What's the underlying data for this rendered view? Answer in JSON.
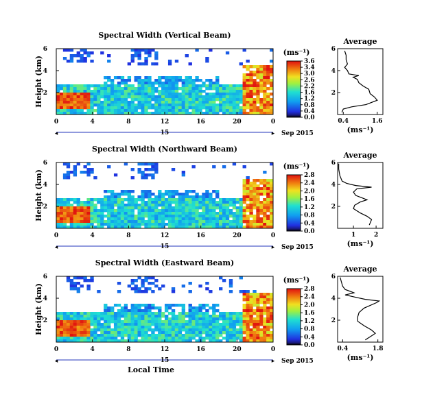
{
  "chart_data": [
    {
      "type": "heatmap",
      "title": "Spectral Width (Vertical Beam)",
      "ylabel": "Height (km)",
      "yticks": [
        "6",
        "4",
        "2"
      ],
      "ylim": [
        0,
        6
      ],
      "xticks": [
        "0",
        "4",
        "8",
        "12",
        "16",
        "20",
        "0"
      ],
      "xlim": [
        0,
        24
      ],
      "date_label": "15",
      "date_suffix": "Sep 2015",
      "colorbar": {
        "unit": "(ms⁻¹)",
        "ticks": [
          "3.6",
          "3.4",
          "3.0",
          "2.6",
          "2.2",
          "1.6",
          "1.2",
          "0.8",
          "0.4",
          "0.0"
        ],
        "range": [
          0,
          3.6
        ]
      },
      "average": {
        "title": "Average",
        "xticks": [
          "0.4",
          "1.6"
        ],
        "xlim": [
          0.2,
          1.8
        ],
        "ylim": [
          0,
          6
        ],
        "yticks": [
          "6",
          "4",
          "2"
        ],
        "xlabel": "(ms⁻¹)",
        "points": [
          [
            0.35,
            0.2
          ],
          [
            0.4,
            0.5
          ],
          [
            0.7,
            0.7
          ],
          [
            1.2,
            0.9
          ],
          [
            1.6,
            1.3
          ],
          [
            1.5,
            1.6
          ],
          [
            1.35,
            1.9
          ],
          [
            1.3,
            2.3
          ],
          [
            1.1,
            2.6
          ],
          [
            0.95,
            2.9
          ],
          [
            0.9,
            3.2
          ],
          [
            0.75,
            3.4
          ],
          [
            0.95,
            3.55
          ],
          [
            0.6,
            3.7
          ],
          [
            0.55,
            4.0
          ],
          [
            0.45,
            4.3
          ],
          [
            0.55,
            4.6
          ],
          [
            0.5,
            5.0
          ],
          [
            0.5,
            5.4
          ],
          [
            0.45,
            5.8
          ]
        ]
      }
    },
    {
      "type": "heatmap",
      "title": "Spectral Width (Northward Beam)",
      "ylabel": "Height (km)",
      "yticks": [
        "6",
        "4",
        "2"
      ],
      "ylim": [
        0,
        6
      ],
      "xticks": [
        "0",
        "4",
        "8",
        "12",
        "16",
        "20",
        "0"
      ],
      "xlim": [
        0,
        24
      ],
      "date_label": "15",
      "date_suffix": "Sep 2015",
      "colorbar": {
        "unit": "(ms⁻¹)",
        "ticks": [
          "2.8",
          "2.4",
          "2.0",
          "1.6",
          "1.2",
          "0.8",
          "0.4",
          "0.0"
        ],
        "range": [
          0,
          2.8
        ]
      },
      "average": {
        "title": "Average",
        "xticks": [
          "1",
          "2"
        ],
        "xlim": [
          0.3,
          2.3
        ],
        "ylim": [
          0,
          6
        ],
        "yticks": [
          "6",
          "4",
          "2"
        ],
        "xlabel": "(ms⁻¹)",
        "points": [
          [
            1.7,
            0.3
          ],
          [
            1.8,
            0.8
          ],
          [
            1.6,
            1.1
          ],
          [
            1.3,
            1.4
          ],
          [
            1.0,
            1.8
          ],
          [
            1.05,
            2.1
          ],
          [
            1.3,
            2.4
          ],
          [
            1.6,
            2.6
          ],
          [
            1.35,
            2.8
          ],
          [
            1.1,
            3.0
          ],
          [
            1.0,
            3.3
          ],
          [
            1.15,
            3.6
          ],
          [
            1.8,
            3.75
          ],
          [
            1.1,
            3.9
          ],
          [
            0.7,
            4.1
          ],
          [
            0.5,
            4.3
          ],
          [
            0.4,
            4.8
          ],
          [
            0.35,
            5.4
          ],
          [
            0.35,
            5.9
          ]
        ]
      }
    },
    {
      "type": "heatmap",
      "title": "Spectral Width (Eastward Beam)",
      "ylabel": "Height (km)",
      "yticks": [
        "6",
        "4",
        "2"
      ],
      "ylim": [
        0,
        6
      ],
      "xticks": [
        "0",
        "4",
        "8",
        "12",
        "16",
        "20",
        "0"
      ],
      "xlim": [
        0,
        24
      ],
      "date_label": "15",
      "date_suffix": "Sep 2015",
      "xlabel": "Local Time",
      "colorbar": {
        "unit": "(ms⁻¹)",
        "ticks": [
          "2.8",
          "2.4",
          "2.0",
          "1.6",
          "1.2",
          "0.8",
          "0.4",
          "0.0"
        ],
        "range": [
          0,
          2.8
        ]
      },
      "average": {
        "title": "Average",
        "xticks": [
          "0.4",
          "1.8"
        ],
        "xlim": [
          0.2,
          2.0
        ],
        "ylim": [
          0,
          6
        ],
        "yticks": [
          "6",
          "4",
          "2"
        ],
        "xlabel": "(ms⁻¹)",
        "points": [
          [
            1.3,
            0.2
          ],
          [
            1.5,
            0.5
          ],
          [
            1.7,
            0.8
          ],
          [
            1.55,
            1.1
          ],
          [
            1.25,
            1.5
          ],
          [
            1.0,
            1.9
          ],
          [
            1.0,
            2.3
          ],
          [
            1.05,
            2.7
          ],
          [
            1.25,
            3.1
          ],
          [
            1.75,
            3.6
          ],
          [
            1.85,
            3.75
          ],
          [
            1.3,
            3.9
          ],
          [
            0.9,
            4.1
          ],
          [
            0.5,
            4.3
          ],
          [
            0.85,
            4.5
          ],
          [
            0.5,
            4.8
          ],
          [
            0.4,
            5.1
          ],
          [
            0.35,
            5.5
          ],
          [
            0.3,
            5.9
          ]
        ]
      }
    }
  ]
}
